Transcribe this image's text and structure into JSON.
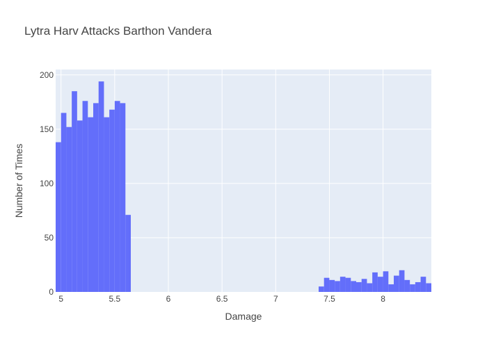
{
  "chart_data": {
    "type": "bar",
    "title": "Lytra Harv Attacks Barthon Vandera",
    "xlabel": "Damage",
    "ylabel": "Number of Times",
    "xlim": [
      4.95,
      8.45
    ],
    "ylim": [
      0,
      205
    ],
    "xticks": [
      5,
      5.5,
      6,
      6.5,
      7,
      7.5,
      8
    ],
    "xtick_labels": [
      "5",
      "5.5",
      "6",
      "6.5",
      "7",
      "7.5",
      "8"
    ],
    "yticks": [
      0,
      50,
      100,
      150,
      200
    ],
    "ytick_labels": [
      "0",
      "50",
      "100",
      "150",
      "200"
    ],
    "bin_width": 0.05,
    "colors": {
      "bar": "#636efa",
      "plot_bg": "#e5ecf6",
      "grid": "#ffffff",
      "text": "#444444"
    },
    "series": [
      {
        "name": "Damage",
        "bins": [
          {
            "x": 4.95,
            "value": 138
          },
          {
            "x": 5.0,
            "value": 165
          },
          {
            "x": 5.05,
            "value": 152
          },
          {
            "x": 5.1,
            "value": 185
          },
          {
            "x": 5.15,
            "value": 158
          },
          {
            "x": 5.2,
            "value": 176
          },
          {
            "x": 5.25,
            "value": 161
          },
          {
            "x": 5.3,
            "value": 174
          },
          {
            "x": 5.35,
            "value": 194
          },
          {
            "x": 5.4,
            "value": 161
          },
          {
            "x": 5.45,
            "value": 168
          },
          {
            "x": 5.5,
            "value": 176
          },
          {
            "x": 5.55,
            "value": 174
          },
          {
            "x": 5.6,
            "value": 71
          },
          {
            "x": 7.4,
            "value": 5
          },
          {
            "x": 7.45,
            "value": 13
          },
          {
            "x": 7.5,
            "value": 11
          },
          {
            "x": 7.55,
            "value": 10
          },
          {
            "x": 7.6,
            "value": 14
          },
          {
            "x": 7.65,
            "value": 13
          },
          {
            "x": 7.7,
            "value": 10
          },
          {
            "x": 7.75,
            "value": 9
          },
          {
            "x": 7.8,
            "value": 12
          },
          {
            "x": 7.85,
            "value": 8
          },
          {
            "x": 7.9,
            "value": 18
          },
          {
            "x": 7.95,
            "value": 14
          },
          {
            "x": 8.0,
            "value": 19
          },
          {
            "x": 8.05,
            "value": 7
          },
          {
            "x": 8.1,
            "value": 15
          },
          {
            "x": 8.15,
            "value": 20
          },
          {
            "x": 8.2,
            "value": 11
          },
          {
            "x": 8.25,
            "value": 7
          },
          {
            "x": 8.3,
            "value": 9
          },
          {
            "x": 8.35,
            "value": 14
          },
          {
            "x": 8.4,
            "value": 8
          }
        ]
      }
    ]
  }
}
